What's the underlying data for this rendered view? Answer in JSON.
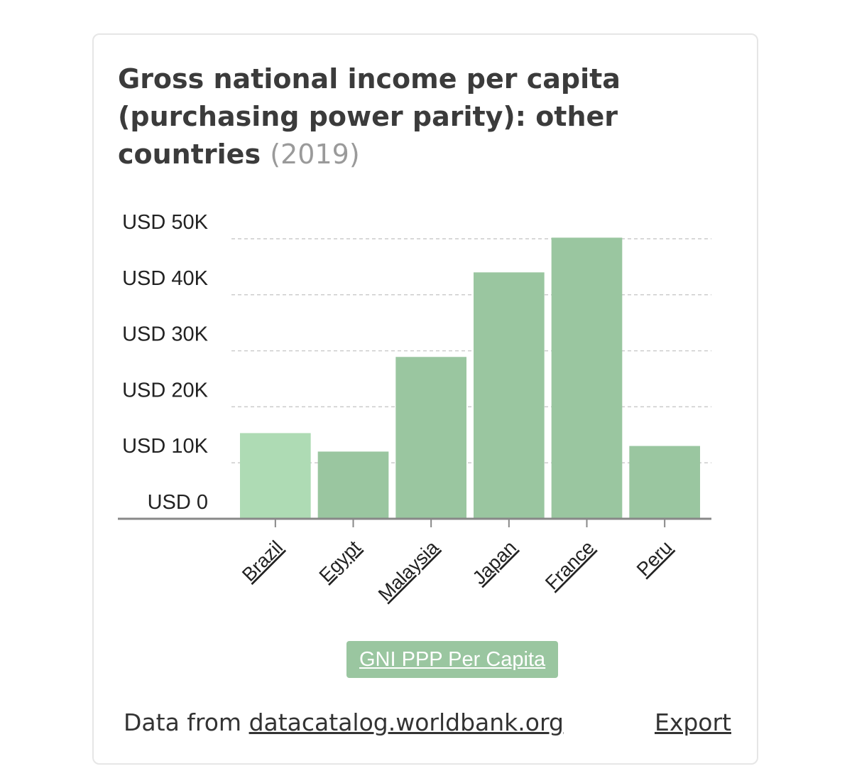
{
  "card": {
    "title": "Gross national income per capita (purchasing power parity): other countries",
    "year": "(2019)"
  },
  "chart_data": {
    "type": "bar",
    "categories": [
      "Brazil",
      "Egypt",
      "Malaysia",
      "Japan",
      "France",
      "Peru"
    ],
    "series": [
      {
        "name": "GNI PPP Per Capita",
        "values": [
          15300,
          12000,
          28900,
          44000,
          50200,
          13000
        ]
      }
    ],
    "ylim": [
      0,
      50000
    ],
    "yticks": [
      0,
      10000,
      20000,
      30000,
      40000,
      50000
    ],
    "ytick_labels": [
      "USD 0",
      "USD 10K",
      "USD 20K",
      "USD 30K",
      "USD 40K",
      "USD 50K"
    ],
    "grid": true,
    "highlighted_category": "Brazil",
    "colors": {
      "bar": "#9ac6a0",
      "highlight": "#aedbb4",
      "axis": "#888888",
      "grid": "#cccccc"
    },
    "legend": {
      "label": "GNI PPP Per Capita",
      "placement": "bottom-center"
    }
  },
  "footer": {
    "source_prefix": "Data from ",
    "source_link": "datacatalog.worldbank.org",
    "export_label": "Export"
  }
}
